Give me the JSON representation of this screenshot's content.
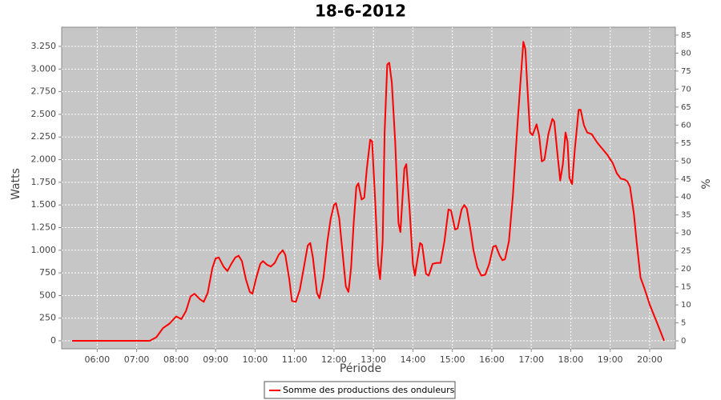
{
  "chart_data": {
    "type": "line",
    "title": "18-6-2012",
    "x_label": "Période",
    "y_label": "Watts",
    "y2_label": "%",
    "x": [
      "05:22",
      "07:20",
      "07:30",
      "07:40",
      "07:50",
      "08:00",
      "08:08",
      "08:15",
      "08:22",
      "08:28",
      "08:36",
      "08:42",
      "08:48",
      "08:55",
      "09:00",
      "09:05",
      "09:12",
      "09:18",
      "09:24",
      "09:30",
      "09:35",
      "09:40",
      "09:46",
      "09:52",
      "09:56",
      "10:02",
      "10:08",
      "10:12",
      "10:18",
      "10:24",
      "10:30",
      "10:36",
      "10:42",
      "10:46",
      "10:52",
      "10:56",
      "11:02",
      "11:08",
      "11:14",
      "11:20",
      "11:24",
      "11:28",
      "11:34",
      "11:38",
      "11:44",
      "11:50",
      "11:55",
      "12:00",
      "12:03",
      "12:08",
      "12:14",
      "12:18",
      "12:22",
      "12:26",
      "12:30",
      "12:34",
      "12:37",
      "12:42",
      "12:46",
      "12:50",
      "12:55",
      "12:58",
      "13:03",
      "13:07",
      "13:10",
      "13:14",
      "13:17",
      "13:21",
      "13:24",
      "13:28",
      "13:33",
      "13:38",
      "13:41",
      "13:47",
      "13:50",
      "13:55",
      "14:00",
      "14:03",
      "14:08",
      "14:11",
      "14:14",
      "14:20",
      "14:24",
      "14:30",
      "14:36",
      "14:42",
      "14:48",
      "14:54",
      "14:58",
      "15:04",
      "15:08",
      "15:14",
      "15:18",
      "15:22",
      "15:28",
      "15:32",
      "15:38",
      "15:44",
      "15:50",
      "15:56",
      "16:02",
      "16:06",
      "16:12",
      "16:16",
      "16:20",
      "16:26",
      "16:32",
      "16:40",
      "16:48",
      "16:51",
      "16:54",
      "16:58",
      "17:02",
      "17:08",
      "17:12",
      "17:16",
      "17:20",
      "17:26",
      "17:32",
      "17:35",
      "17:40",
      "17:44",
      "17:48",
      "17:52",
      "17:55",
      "17:58",
      "18:02",
      "18:06",
      "18:12",
      "18:15",
      "18:20",
      "18:25",
      "18:32",
      "18:40",
      "18:48",
      "18:56",
      "19:04",
      "19:10",
      "19:16",
      "19:22",
      "19:26",
      "19:30",
      "19:36",
      "19:40",
      "19:46",
      "19:52",
      "20:00",
      "20:10",
      "20:22"
    ],
    "series": [
      {
        "name": "Somme des productions des onduleurs",
        "color": "#ff0000",
        "values": [
          0,
          0,
          40,
          140,
          190,
          270,
          240,
          330,
          490,
          520,
          460,
          430,
          530,
          800,
          910,
          920,
          820,
          770,
          850,
          920,
          940,
          880,
          680,
          540,
          520,
          700,
          850,
          880,
          840,
          820,
          860,
          950,
          1000,
          950,
          680,
          440,
          430,
          560,
          800,
          1050,
          1080,
          920,
          530,
          470,
          700,
          1100,
          1350,
          1500,
          1520,
          1350,
          900,
          600,
          540,
          800,
          1300,
          1700,
          1740,
          1560,
          1580,
          1900,
          2220,
          2200,
          1500,
          850,
          680,
          1100,
          2300,
          3050,
          3070,
          2850,
          2200,
          1300,
          1200,
          1900,
          1950,
          1450,
          850,
          720,
          950,
          1080,
          1060,
          740,
          720,
          850,
          860,
          860,
          1100,
          1450,
          1440,
          1230,
          1240,
          1450,
          1500,
          1460,
          1200,
          1000,
          810,
          720,
          730,
          850,
          1040,
          1050,
          940,
          890,
          900,
          1100,
          1600,
          2500,
          3300,
          3220,
          2800,
          2300,
          2270,
          2390,
          2260,
          1980,
          2000,
          2280,
          2450,
          2420,
          2050,
          1770,
          1950,
          2300,
          2200,
          1800,
          1730,
          2100,
          2550,
          2550,
          2380,
          2300,
          2280,
          2190,
          2120,
          2050,
          1960,
          1850,
          1790,
          1780,
          1760,
          1700,
          1400,
          1100,
          700,
          580,
          400,
          220,
          0
        ]
      }
    ],
    "xlim": [
      "05:06",
      "20:39"
    ],
    "xticks": [
      "06:00",
      "07:00",
      "08:00",
      "09:00",
      "10:00",
      "11:00",
      "12:00",
      "13:00",
      "14:00",
      "15:00",
      "16:00",
      "17:00",
      "18:00",
      "19:00",
      "20:00"
    ],
    "ylim": [
      -88,
      3462
    ],
    "yticks": [
      0,
      250,
      500,
      750,
      {
        "value": 1000,
        "label": "1.000"
      },
      {
        "value": 1250,
        "label": "1.250"
      },
      {
        "value": 1500,
        "label": "1.500"
      },
      {
        "value": 1750,
        "label": "1.750"
      },
      {
        "value": 2000,
        "label": "2.000"
      },
      {
        "value": 2250,
        "label": "2.250"
      },
      {
        "value": 2500,
        "label": "2.500"
      },
      {
        "value": 2750,
        "label": "2.750"
      },
      {
        "value": 3000,
        "label": "3.000"
      },
      {
        "value": 3250,
        "label": "3.250"
      }
    ],
    "y2lim": [
      -2.2,
      87.2
    ],
    "y2ticks": [
      0,
      5,
      10,
      15,
      20,
      25,
      30,
      35,
      40,
      45,
      50,
      55,
      60,
      65,
      70,
      75,
      80,
      85
    ],
    "grid": true,
    "legend": "bottom"
  }
}
